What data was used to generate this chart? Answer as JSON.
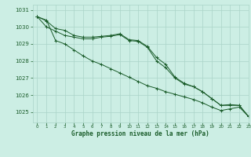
{
  "title": "Graphe pression niveau de la mer (hPa)",
  "background_color": "#cceee4",
  "grid_color": "#aad4c8",
  "line_color": "#1a5c2a",
  "xlim": [
    -0.5,
    23
  ],
  "ylim": [
    1024.4,
    1031.3
  ],
  "yticks": [
    1025,
    1026,
    1027,
    1028,
    1029,
    1030,
    1031
  ],
  "xticks": [
    0,
    1,
    2,
    3,
    4,
    5,
    6,
    7,
    8,
    9,
    10,
    11,
    12,
    13,
    14,
    15,
    16,
    17,
    18,
    19,
    20,
    21,
    22,
    23
  ],
  "series1": [
    1030.6,
    1030.35,
    1029.9,
    1029.8,
    1029.5,
    1029.4,
    1029.4,
    1029.45,
    1029.5,
    1029.6,
    1029.25,
    1029.2,
    1028.85,
    1028.2,
    1027.8,
    1027.05,
    1026.7,
    1026.5,
    1026.2,
    1025.8,
    1025.4,
    1025.45,
    1025.4,
    1024.75
  ],
  "series2": [
    1030.6,
    1030.0,
    1029.75,
    1029.5,
    1029.4,
    1029.3,
    1029.3,
    1029.4,
    1029.45,
    1029.55,
    1029.2,
    1029.15,
    1028.8,
    1028.0,
    1027.6,
    1027.0,
    1026.65,
    1026.5,
    1026.2,
    1025.8,
    1025.4,
    1025.4,
    1025.4,
    1024.75
  ],
  "series3": [
    1030.6,
    1030.4,
    1029.2,
    1029.0,
    1028.65,
    1028.3,
    1028.0,
    1027.8,
    1027.55,
    1027.3,
    1027.05,
    1026.8,
    1026.55,
    1026.4,
    1026.2,
    1026.05,
    1025.9,
    1025.75,
    1025.55,
    1025.3,
    1025.1,
    1025.2,
    1025.3,
    1024.75
  ]
}
